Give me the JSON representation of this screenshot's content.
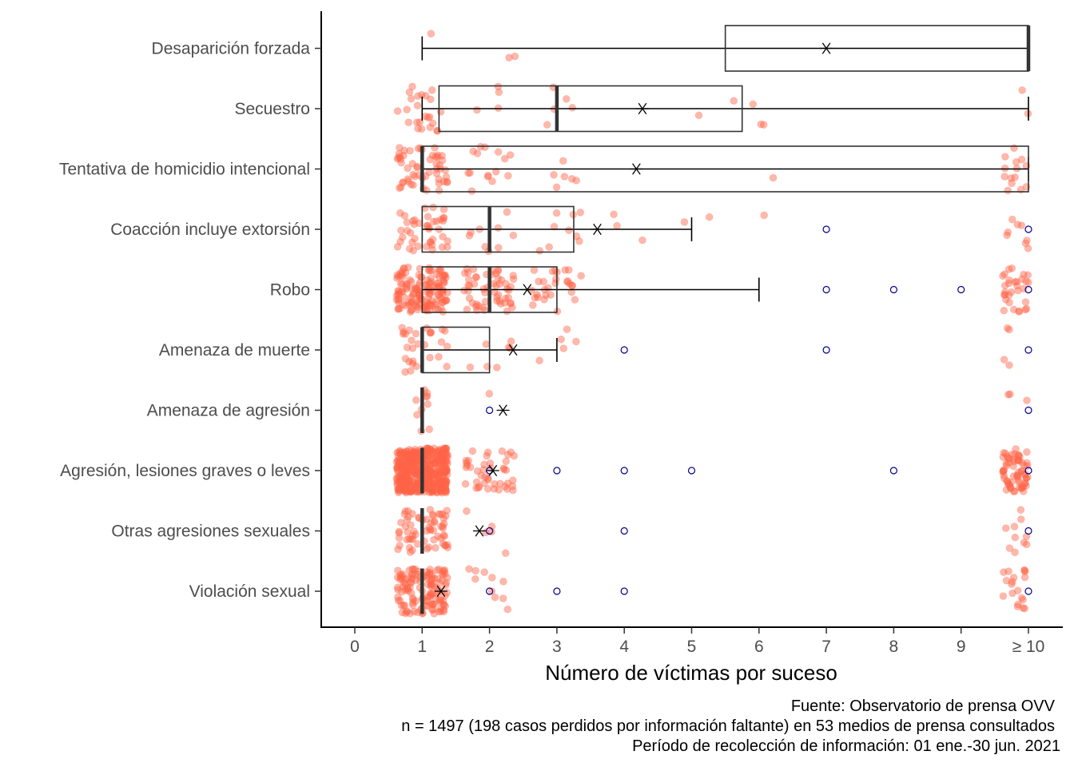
{
  "chart_data": {
    "type": "boxplot",
    "orientation": "horizontal",
    "xlabel": "Número de víctimas por suceso",
    "ylabel": "",
    "xlim": [
      -0.5,
      10.5
    ],
    "x_ticks": [
      {
        "value": 0,
        "label": "0"
      },
      {
        "value": 1,
        "label": "1"
      },
      {
        "value": 2,
        "label": "2"
      },
      {
        "value": 3,
        "label": "3"
      },
      {
        "value": 4,
        "label": "4"
      },
      {
        "value": 5,
        "label": "5"
      },
      {
        "value": 6,
        "label": "6"
      },
      {
        "value": 7,
        "label": "7"
      },
      {
        "value": 8,
        "label": "8"
      },
      {
        "value": 9,
        "label": "9"
      },
      {
        "value": 10,
        "label": "≥ 10"
      }
    ],
    "grid": false,
    "colors": {
      "points": "#FF6347",
      "outliers": "#00008B",
      "box": "#333333",
      "mean_marker": "#000000",
      "axis": "#000000"
    },
    "categories": [
      {
        "name": "Desaparición forzada",
        "min": 1,
        "q1": 5.5,
        "median": 10,
        "q3": 10,
        "max": 10,
        "mean": 7,
        "outliers": [],
        "count": 3,
        "spread": 1
      },
      {
        "name": "Secuestro",
        "min": 1,
        "q1": 1.25,
        "median": 3,
        "q3": 5.75,
        "max": 10,
        "mean": 4.27,
        "outliers": [],
        "count": 40,
        "spread": 1
      },
      {
        "name": "Tentativa de homicidio intencional",
        "min": 1,
        "q1": 1,
        "median": 1,
        "q3": 10,
        "max": 10,
        "mean": 4.18,
        "outliers": [],
        "count": 90,
        "spread": 1
      },
      {
        "name": "Coacción  incluye extorsión ",
        "min": 1,
        "q1": 1,
        "median": 2,
        "q3": 3.25,
        "max": 5,
        "mean": 3.6,
        "outliers": [
          7,
          10
        ],
        "count": 75,
        "spread": 1
      },
      {
        "name": "Robo",
        "min": 1,
        "q1": 1,
        "median": 2,
        "q3": 3,
        "max": 6,
        "mean": 2.56,
        "outliers": [
          7,
          8,
          9,
          10
        ],
        "count": 260,
        "spread": 1
      },
      {
        "name": "Amenaza de muerte",
        "min": 1,
        "q1": 1,
        "median": 1,
        "q3": 2,
        "max": 3,
        "mean": 2.35,
        "outliers": [
          4,
          7,
          10
        ],
        "count": 45,
        "spread": 1
      },
      {
        "name": "Amenaza de agresión",
        "min": 1,
        "q1": 1,
        "median": 1,
        "q3": 1,
        "max": 1,
        "mean": 2.2,
        "outliers": [
          2,
          10
        ],
        "count": 14,
        "spread": 0.3
      },
      {
        "name": "Agresión, lesiones graves o leves",
        "min": 1,
        "q1": 1,
        "median": 1,
        "q3": 1,
        "max": 1,
        "mean": 2.05,
        "outliers": [
          2,
          3,
          4,
          5,
          8,
          10
        ],
        "count": 560,
        "spread": 1
      },
      {
        "name": "Otras agresiones sexuales",
        "min": 1,
        "q1": 1,
        "median": 1,
        "q3": 1,
        "max": 1,
        "mean": 1.85,
        "outliers": [
          2,
          4,
          10
        ],
        "count": 80,
        "spread": 1
      },
      {
        "name": "Violación sexual",
        "min": 1,
        "q1": 1,
        "median": 1,
        "q3": 1,
        "max": 1,
        "mean": 1.28,
        "outliers": [
          2,
          3,
          4,
          10
        ],
        "count": 160,
        "spread": 1
      }
    ],
    "caption": [
      "Fuente: Observatorio de prensa OVV",
      "n = 1497 (198 casos perdidos por información faltante) en 53 medios de prensa consultados",
      "Período de recolección de información: 01 ene.-30 jun. 2021"
    ]
  }
}
